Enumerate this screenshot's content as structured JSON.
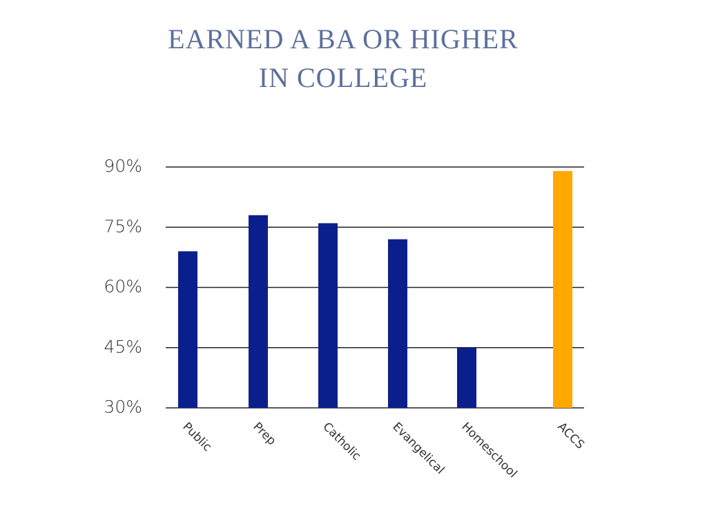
{
  "chart_data": {
    "type": "bar",
    "title": [
      "EARNED A BA OR HIGHER",
      "IN COLLEGE"
    ],
    "categories": [
      "Public",
      "Prep",
      "Catholic",
      "Evangelical",
      "Homeschool",
      "ACCS"
    ],
    "values": [
      69,
      78,
      76,
      72,
      45,
      89
    ],
    "colors": [
      "#0b1f8c",
      "#0b1f8c",
      "#0b1f8c",
      "#0b1f8c",
      "#0b1f8c",
      "#ffa800"
    ],
    "ylim": [
      30,
      90
    ],
    "yticks": [
      {
        "value": 30,
        "label": "30%"
      },
      {
        "value": 45,
        "label": "45%"
      },
      {
        "value": 60,
        "label": "60%"
      },
      {
        "value": 75,
        "label": "75%"
      },
      {
        "value": 90,
        "label": "90%"
      }
    ],
    "grid": true
  }
}
